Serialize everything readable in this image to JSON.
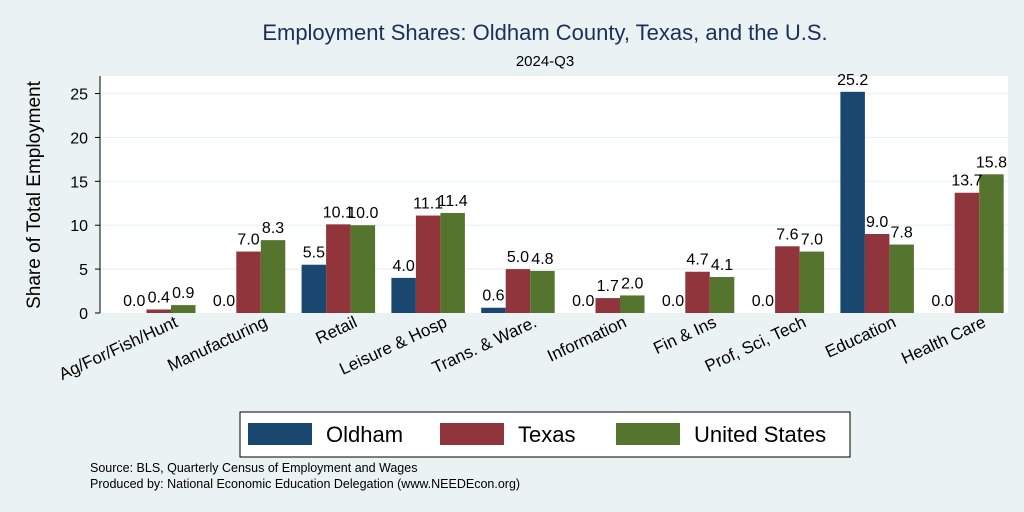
{
  "chart_data": {
    "type": "bar",
    "title": "Employment Shares: Oldham County, Texas, and the U.S.",
    "subtitle": "2024-Q3",
    "xlabel": "",
    "ylabel": "Share of Total Employment",
    "ylim": [
      0,
      27
    ],
    "yticks": [
      0,
      5,
      10,
      15,
      20,
      25
    ],
    "grid": true,
    "categories": [
      "Ag/For/Fish/Hunt",
      "Manufacturing",
      "Retail",
      "Leisure & Hosp",
      "Trans. & Ware.",
      "Information",
      "Fin & Ins",
      "Prof, Sci, Tech",
      "Education",
      "Health Care"
    ],
    "series": [
      {
        "name": "Oldham",
        "color": "#1a476f",
        "values": [
          0.0,
          0.0,
          5.5,
          4.0,
          0.6,
          0.0,
          0.0,
          0.0,
          25.2,
          0.0
        ],
        "labels": [
          "0.0",
          "0.0",
          "5.5",
          "4.0",
          "0.6",
          "0.0",
          "0.0",
          "0.0",
          "25.2",
          "0.0"
        ]
      },
      {
        "name": "Texas",
        "color": "#90353b",
        "values": [
          0.4,
          7.0,
          10.1,
          11.1,
          5.0,
          1.7,
          4.7,
          7.6,
          9.0,
          13.7
        ],
        "labels": [
          "0.4",
          "7.0",
          "10.1",
          "11.1",
          "5.0",
          "1.7",
          "4.7",
          "7.6",
          "9.0",
          "13.7"
        ]
      },
      {
        "name": "United States",
        "color": "#55752f",
        "values": [
          0.9,
          8.3,
          10.0,
          11.4,
          4.8,
          2.0,
          4.1,
          7.0,
          7.8,
          15.8
        ],
        "labels": [
          "0.9",
          "8.3",
          "10.0",
          "11.4",
          "4.8",
          "2.0",
          "4.1",
          "7.0",
          "7.8",
          "15.8"
        ]
      }
    ],
    "legend_position": "bottom"
  },
  "colors": {
    "background": "#eaf2f3",
    "plot_background": "#ffffff",
    "title": "#1a2f5a",
    "grid": "#eaf2f3"
  },
  "notes": {
    "source": "Source: BLS, Quarterly Census of Employment and Wages",
    "produced_by": "Produced by: National Economic Education Delegation (www.NEEDEcon.org)"
  }
}
